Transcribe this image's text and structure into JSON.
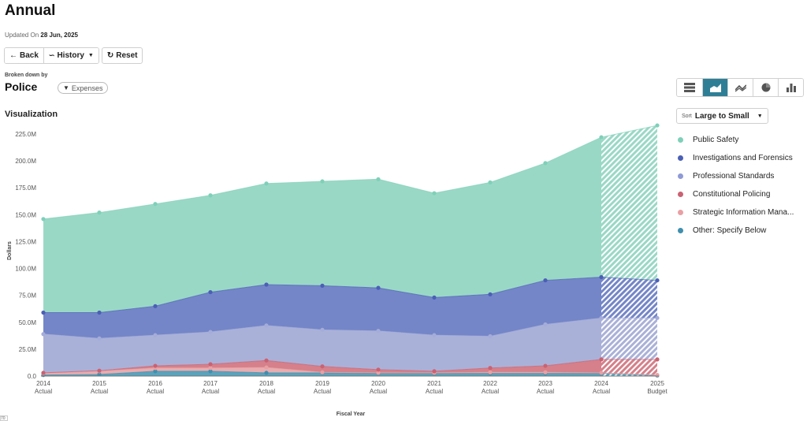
{
  "header": {
    "title": "Annual",
    "updated_label": "Updated On",
    "updated_date": "28 Jun, 2025"
  },
  "toolbar": {
    "back_label": "Back",
    "history_label": "History",
    "reset_label": "Reset"
  },
  "breakdown": {
    "label": "Broken down by",
    "dimension": "Police",
    "filter_label": "Expenses"
  },
  "visualization": {
    "title": "Visualization",
    "chart_types": [
      "stacked-bar-horizontal-icon",
      "area-chart-icon",
      "line-chart-icon",
      "pie-chart-icon",
      "bar-chart-icon"
    ],
    "active_chart_type": 1,
    "sort_label": "Sort",
    "sort_value": "Large to Small"
  },
  "legend": [
    {
      "label": "Public Safety",
      "color": "#7fd0b8"
    },
    {
      "label": "Investigations and Forensics",
      "color": "#4a5fb5"
    },
    {
      "label": "Professional Standards",
      "color": "#8f9ad6"
    },
    {
      "label": "Constitutional Policing",
      "color": "#c96272"
    },
    {
      "label": "Strategic Information Mana...",
      "color": "#e9a0a4"
    },
    {
      "label": "Other: Specify Below",
      "color": "#3f8fae"
    }
  ],
  "footer": {
    "corner_box": "70"
  },
  "chart_data": {
    "type": "area",
    "stacked": true,
    "title": "Visualization",
    "xlabel": "Fiscal Year",
    "ylabel": "Dollars",
    "ylim": [
      0,
      235000000
    ],
    "yticks": [
      "0.0",
      "25.0M",
      "50.0M",
      "75.0M",
      "100.0M",
      "125.0M",
      "150.0M",
      "175.0M",
      "200.0M",
      "225.0M"
    ],
    "categories": [
      "2014",
      "2015",
      "2016",
      "2017",
      "2018",
      "2019",
      "2020",
      "2021",
      "2022",
      "2023",
      "2024",
      "2025"
    ],
    "category_sublabels": [
      "Actual",
      "Actual",
      "Actual",
      "Actual",
      "Actual",
      "Actual",
      "Actual",
      "Actual",
      "Actual",
      "Actual",
      "Actual",
      "Budget"
    ],
    "units": "millions of dollars",
    "series": [
      {
        "name": "Other: Specify Below",
        "color": "#5aa3bd",
        "values": [
          1.0,
          1.5,
          4.5,
          4.5,
          3.0,
          3.0,
          2.5,
          2.5,
          2.5,
          2.5,
          2.5,
          0.5
        ]
      },
      {
        "name": "Strategic Information Mana...",
        "color": "#e8adb0",
        "values": [
          1.5,
          3.0,
          3.0,
          3.0,
          5.0,
          0.5,
          0.5,
          0.5,
          1.0,
          1.0,
          0.5,
          0.5
        ]
      },
      {
        "name": "Constitutional Policing",
        "color": "#d5808a",
        "values": [
          0.5,
          0.5,
          2.0,
          3.5,
          6.5,
          5.5,
          3.0,
          1.5,
          4.0,
          6.0,
          12.5,
          14.5
        ]
      },
      {
        "name": "Professional Standards",
        "color": "#aab1d8",
        "values": [
          36.0,
          30.0,
          28.5,
          30.0,
          32.5,
          34.0,
          36.0,
          33.5,
          29.5,
          38.5,
          38.5,
          38.5
        ]
      },
      {
        "name": "Investigations and Forensics",
        "color": "#7486c8",
        "values": [
          20.0,
          24.0,
          27.0,
          37.0,
          38.0,
          41.0,
          40.0,
          35.0,
          39.0,
          41.0,
          38.0,
          35.0
        ]
      },
      {
        "name": "Public Safety",
        "color": "#9ad8c6",
        "values": [
          87.0,
          93.0,
          95.0,
          90.0,
          94.0,
          97.0,
          101.0,
          97.0,
          104.0,
          109.0,
          130.0,
          144.0
        ]
      }
    ],
    "totals": [
      146,
      152,
      160,
      168,
      179,
      181,
      183,
      170,
      180,
      198,
      222,
      233
    ],
    "projected_category": "2025",
    "grid": false,
    "legend_position": "right"
  }
}
